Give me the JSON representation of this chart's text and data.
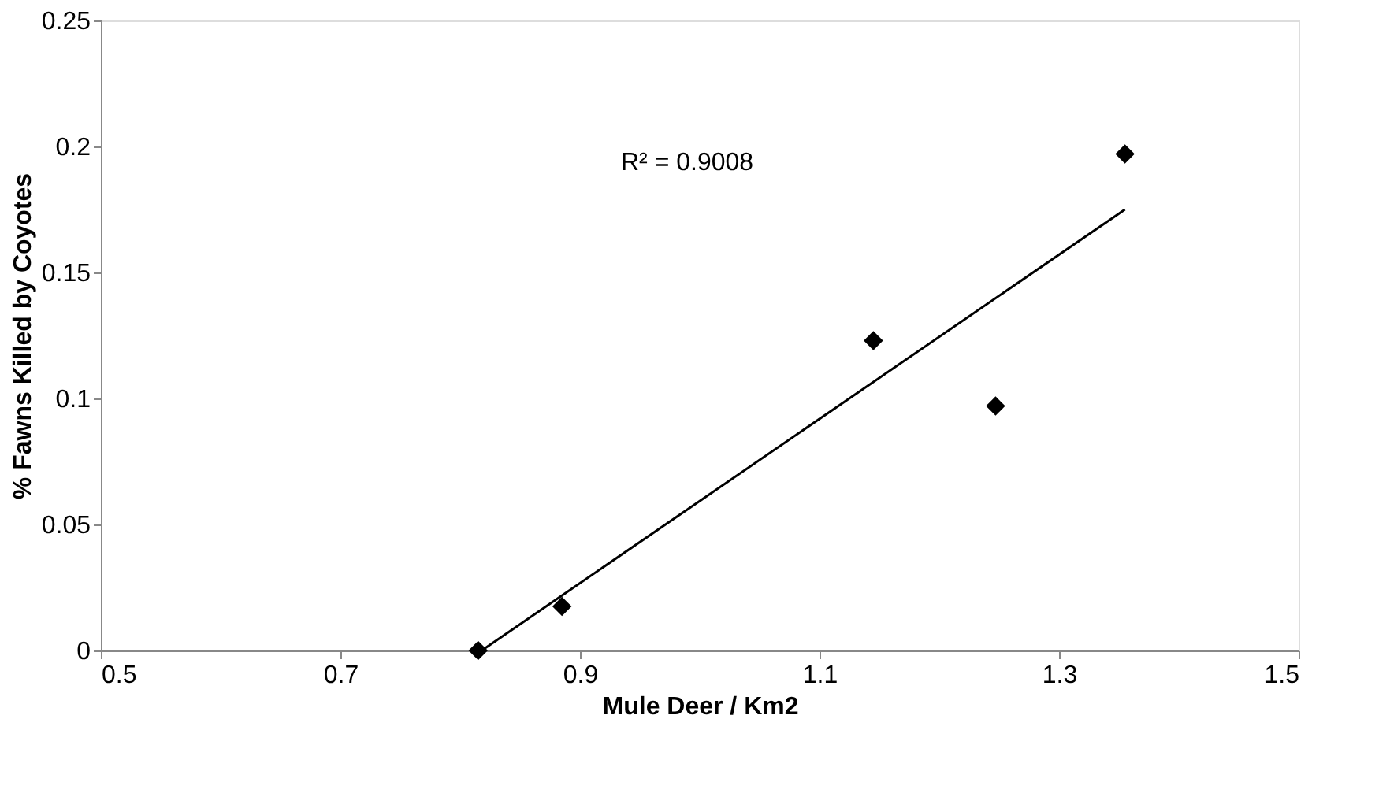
{
  "chart_data": {
    "type": "scatter",
    "xlabel": "Mule Deer / Km2",
    "ylabel": "% Fawns Killed by Coyotes",
    "xlim": [
      0.5,
      1.5
    ],
    "xticks": [
      0.5,
      0.7,
      0.9,
      1.1,
      1.3,
      1.5
    ],
    "ylim": [
      0,
      0.25
    ],
    "yticks": [
      0,
      0.05,
      0.1,
      0.15,
      0.2,
      0.25
    ],
    "grid": false,
    "series": [
      {
        "color": "#000000",
        "marker": "diamond",
        "x": [
          0.815,
          0.885,
          1.145,
          1.247,
          1.355
        ],
        "values": [
          0,
          0.0175,
          0.123,
          0.097,
          0.197
        ]
      },
      {
        "type": "line",
        "color": "#000000",
        "line_style": "solid",
        "marker": "none",
        "x": [
          0.818,
          1.355
        ],
        "values": [
          0,
          0.175
        ]
      }
    ],
    "annotations": [
      "R² = 0.9008"
    ]
  }
}
